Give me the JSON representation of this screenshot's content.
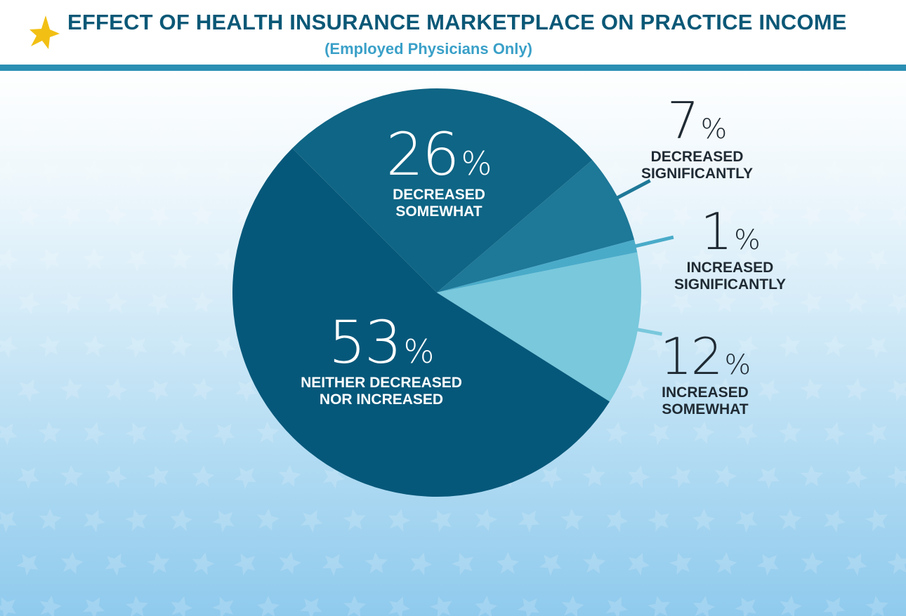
{
  "header": {
    "title": "EFFECT OF HEALTH INSURANCE MARKETPLACE ON PRACTICE INCOME",
    "subtitle": "(Employed Physicians Only)",
    "icon": "star-icon",
    "accent_color": "#2b8fb3",
    "title_color": "#0b5877"
  },
  "chart_data": {
    "type": "pie",
    "title": "EFFECT OF HEALTH INSURANCE MARKETPLACE ON PRACTICE INCOME",
    "subtitle": "(Employed Physicians Only)",
    "unit": "%",
    "slices": [
      {
        "label": "DECREASED SOMEWHAT",
        "value": 26,
        "color": "#0f6585"
      },
      {
        "label": "DECREASED SIGNIFICANTLY",
        "value": 7,
        "color": "#1e7898"
      },
      {
        "label": "INCREASED SIGNIFICANTLY",
        "value": 1,
        "color": "#4aabc9"
      },
      {
        "label": "INCREASED SOMEWHAT",
        "value": 12,
        "color": "#79c8dc"
      },
      {
        "label": "NEITHER DECREASED NOR INCREASED",
        "value": 53,
        "color": "#06587a"
      }
    ]
  }
}
